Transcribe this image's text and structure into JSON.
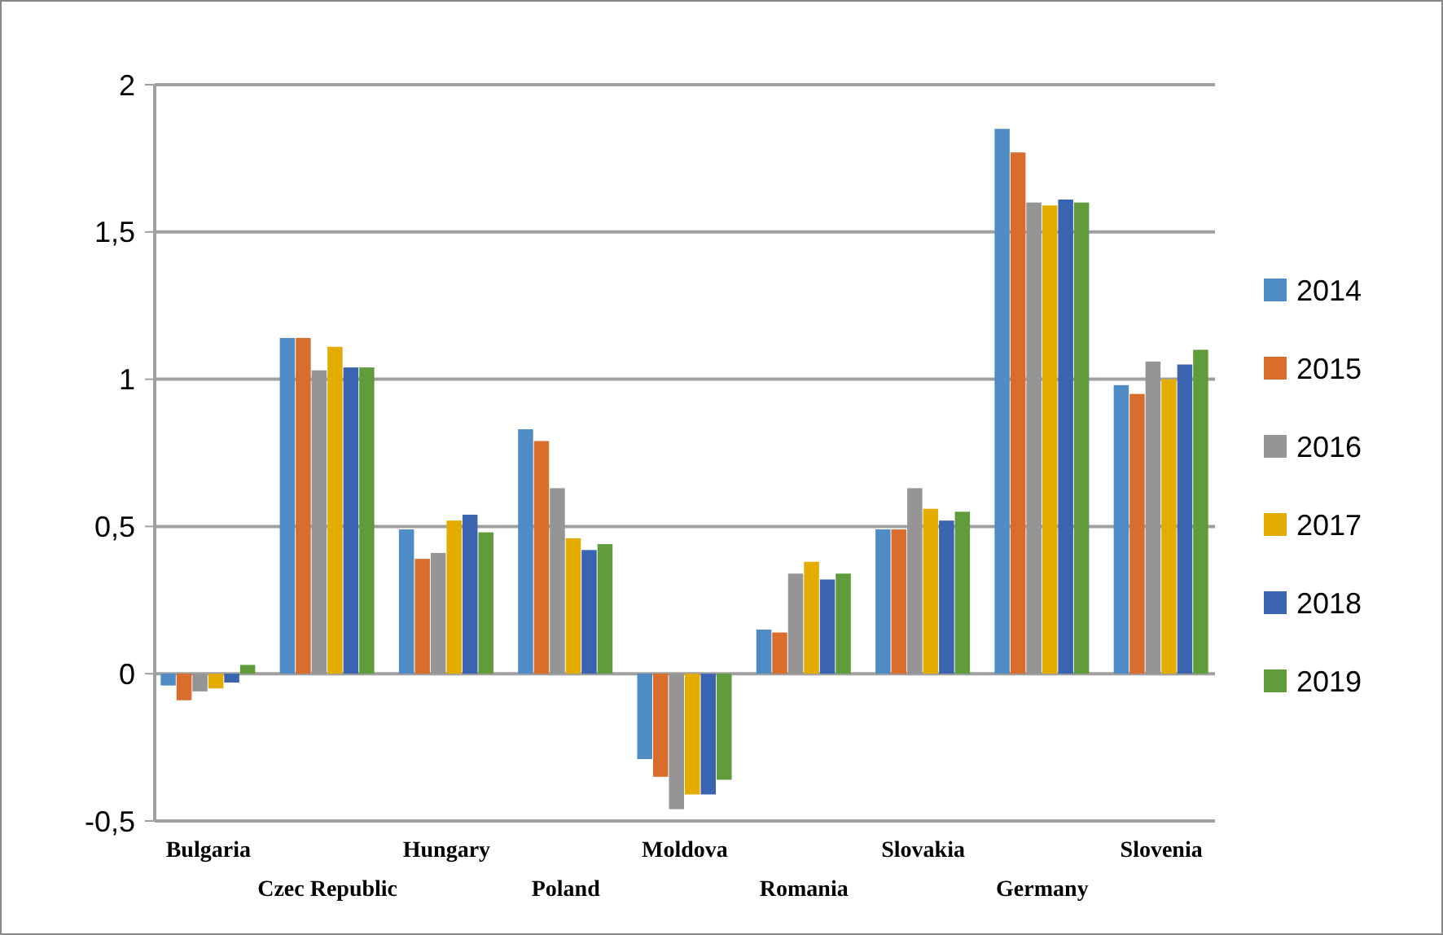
{
  "chart_data": {
    "type": "bar",
    "categories": [
      "Bulgaria",
      "Czec Republic",
      "Hungary",
      "Poland",
      "Moldova",
      "Romania",
      "Slovakia",
      "Germany",
      "Slovenia"
    ],
    "series": [
      {
        "name": "2014",
        "color": "#4f8bc4",
        "values": [
          -0.04,
          1.14,
          0.49,
          0.83,
          -0.29,
          0.15,
          0.49,
          1.85,
          0.98
        ]
      },
      {
        "name": "2015",
        "color": "#d96d2b",
        "values": [
          -0.09,
          1.14,
          0.39,
          0.79,
          -0.35,
          0.14,
          0.49,
          1.77,
          0.95
        ]
      },
      {
        "name": "2016",
        "color": "#959595",
        "values": [
          -0.06,
          1.03,
          0.41,
          0.63,
          -0.46,
          0.34,
          0.63,
          1.6,
          1.06
        ]
      },
      {
        "name": "2017",
        "color": "#e5ac00",
        "values": [
          -0.05,
          1.11,
          0.52,
          0.46,
          -0.41,
          0.38,
          0.56,
          1.59,
          1.0
        ]
      },
      {
        "name": "2018",
        "color": "#3a64b0",
        "values": [
          -0.03,
          1.04,
          0.54,
          0.42,
          -0.41,
          0.32,
          0.52,
          1.61,
          1.05
        ]
      },
      {
        "name": "2019",
        "color": "#609b3c",
        "values": [
          0.03,
          1.04,
          0.48,
          0.44,
          -0.36,
          0.34,
          0.55,
          1.6,
          1.1
        ]
      }
    ],
    "ylim": [
      -0.5,
      2
    ],
    "yticks": [
      {
        "value": -0.5,
        "label": "-0,5"
      },
      0,
      {
        "value": 0.5,
        "label": "0,5"
      },
      1,
      {
        "value": 1.5,
        "label": "1,5"
      },
      2
    ],
    "grid": "y",
    "legend": "right"
  }
}
